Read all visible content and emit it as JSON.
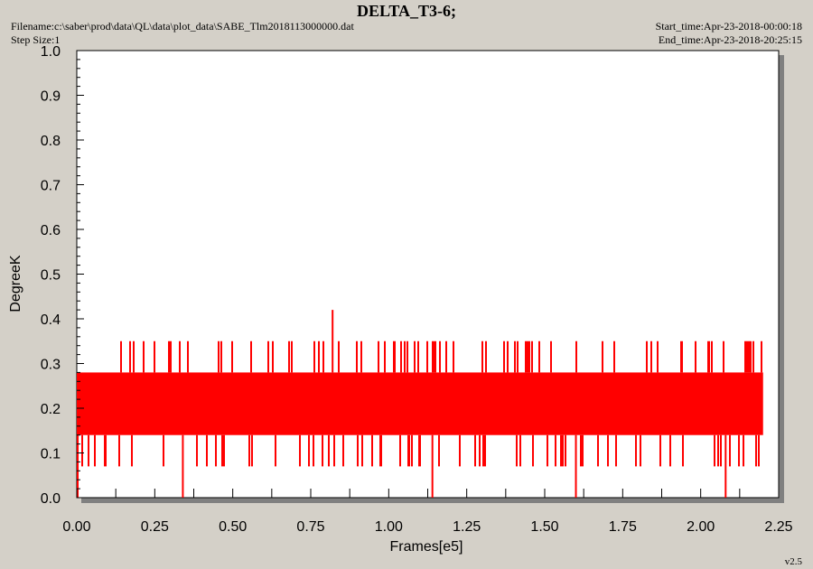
{
  "header": {
    "title": "DELTA_T3-6;",
    "filename": "Filename:c:\\saber\\prod\\data\\QL\\data\\plot_data\\SABE_Tlm2018113000000.dat",
    "step_size": "Step Size:1",
    "start_time": "Start_time:Apr-23-2018-00:00:18",
    "end_time": "End_time:Apr-23-2018-20:25:15"
  },
  "version": "v2.5",
  "chart_data": {
    "type": "line",
    "title": "DELTA_T3-6;",
    "xlabel": "Frames[e5]",
    "ylabel": "DegreeK",
    "xlim": [
      0.0,
      2.25
    ],
    "ylim": [
      0.0,
      1.0
    ],
    "x_ticks": [
      "0.00",
      "0.25",
      "0.50",
      "0.75",
      "1.00",
      "1.25",
      "1.50",
      "1.75",
      "2.00",
      "2.25"
    ],
    "y_ticks": [
      "0.0",
      "0.1",
      "0.2",
      "0.3",
      "0.4",
      "0.5",
      "0.6",
      "0.7",
      "0.8",
      "0.9",
      "1.0"
    ],
    "grid": false,
    "color": "#ff0000",
    "series": [
      {
        "x_range": [
          0.0,
          2.2
        ],
        "band_low": 0.14,
        "band_high": 0.28,
        "spike_high": 0.35,
        "dip_low": 0.07,
        "max": 0.42,
        "max_at": 0.82,
        "min": 0.0,
        "min_at": [
          0.34,
          1.14,
          1.6,
          2.08
        ]
      }
    ]
  }
}
